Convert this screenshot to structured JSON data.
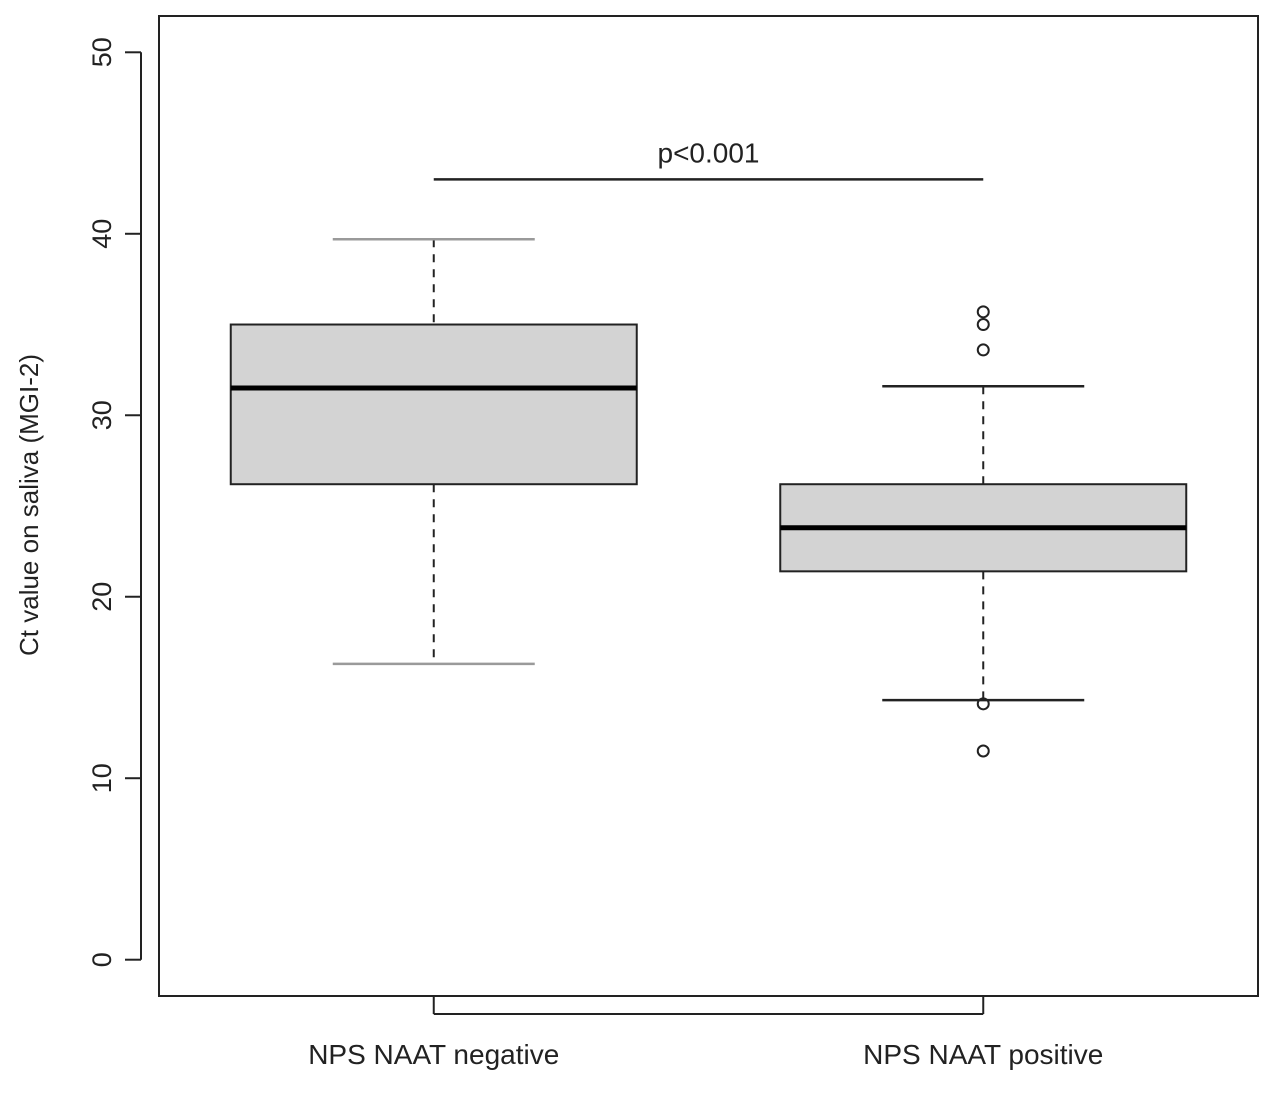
{
  "chart_data": {
    "type": "box",
    "ylabel": "Ct value on saliva (MGI-2)",
    "xlabel": "",
    "ylim": [
      -2,
      52
    ],
    "yticks": [
      0,
      10,
      20,
      30,
      40,
      50
    ],
    "grid": false,
    "categories": [
      "NPS NAAT negative",
      "NPS NAAT positive"
    ],
    "boxes": [
      {
        "category": "NPS NAAT negative",
        "whisker_low": 16.3,
        "q1": 26.2,
        "median": 31.5,
        "q3": 35.0,
        "whisker_high": 39.7,
        "outliers": []
      },
      {
        "category": "NPS NAAT positive",
        "whisker_low": 14.3,
        "q1": 21.4,
        "median": 23.8,
        "q3": 26.2,
        "whisker_high": 31.6,
        "outliers": [
          35.7,
          35.0,
          33.6,
          14.1,
          11.5
        ]
      }
    ],
    "annotation": {
      "text": "p<0.001",
      "y": 43
    },
    "colors": {
      "box_fill": "#d3d3d3",
      "stroke": "#222222"
    }
  }
}
